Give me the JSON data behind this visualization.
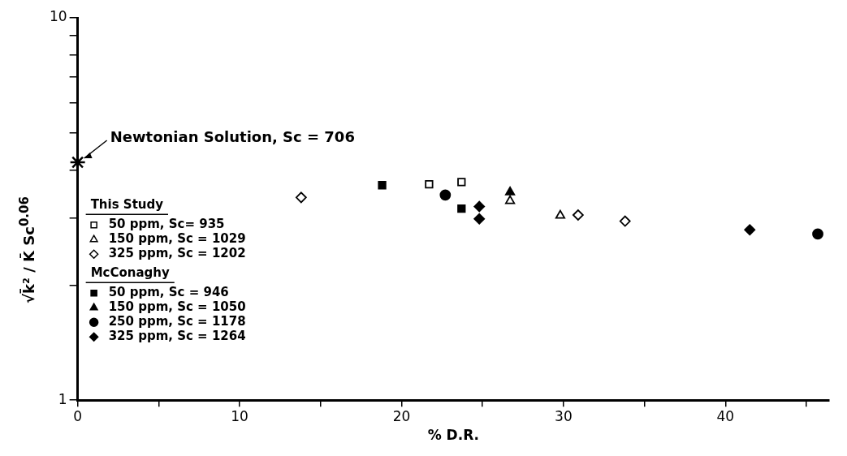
{
  "chart_data": {
    "type": "scatter",
    "xlabel": "% D.R.",
    "ylabel": "√k̄² / K̄  Sc$^{0.06}$",
    "log": "y",
    "grid": false,
    "legend": "left",
    "xlim": [
      0,
      46.4
    ],
    "ylim": [
      1,
      10
    ],
    "xticks": [
      {
        "value": 0,
        "label": "0"
      },
      {
        "value": 5,
        "label": null
      },
      {
        "value": 10,
        "label": "10"
      },
      {
        "value": 15,
        "label": null
      },
      {
        "value": 20,
        "label": "20"
      },
      {
        "value": 25,
        "label": null
      },
      {
        "value": 30,
        "label": "30"
      },
      {
        "value": 35,
        "label": null
      },
      {
        "value": 40,
        "label": "40"
      },
      {
        "value": 45,
        "label": null
      }
    ],
    "yticks": [
      1,
      {
        "value": 2,
        "label": null
      },
      {
        "value": 3,
        "label": null
      },
      {
        "value": 4,
        "label": null
      },
      {
        "value": 5,
        "label": null
      },
      {
        "value": 6,
        "label": null
      },
      {
        "value": 7,
        "label": null
      },
      {
        "value": 8,
        "label": null
      },
      {
        "value": 9,
        "label": null
      },
      10
    ],
    "annotations": [
      {
        "text": "Newtonian Solution, Sc = 706",
        "x": 0,
        "y": 4.19
      },
      "This Study",
      "McConaghy"
    ],
    "series": [
      {
        "color": "#000000",
        "marker": "cross",
        "x": [
          0
        ],
        "values": [
          4.19
        ]
      },
      {
        "name": "50 ppm, Sc= 935",
        "color": "#ffffff",
        "marker": "square",
        "x": [
          21.7,
          23.7
        ],
        "values": [
          3.67,
          3.72
        ]
      },
      {
        "name": "150 ppm, Sc = 1029",
        "color": "#ffffff",
        "marker": "triangle",
        "x": [
          26.7,
          29.8
        ],
        "values": [
          3.32,
          3.04
        ]
      },
      {
        "name": "325 ppm, Sc = 1202",
        "color": "#ffffff",
        "marker": "diamond",
        "x": [
          13.8,
          30.9,
          33.8
        ],
        "values": [
          3.39,
          3.05,
          2.94
        ]
      },
      {
        "name": "50 ppm, Sc = 946",
        "color": "#000000",
        "marker": "square",
        "x": [
          18.8,
          23.7
        ],
        "values": [
          3.65,
          3.17
        ]
      },
      {
        "name": "150 ppm, Sc = 1050",
        "color": "#000000",
        "marker": "triangle",
        "x": [
          26.7
        ],
        "values": [
          3.5
        ]
      },
      {
        "name": "250 ppm, Sc = 1178",
        "color": "#000000",
        "marker": "circle",
        "x": [
          22.7,
          45.7
        ],
        "values": [
          3.44,
          2.72
        ]
      },
      {
        "name": "325 ppm, Sc = 1264",
        "color": "#000000",
        "marker": "diamond",
        "x": [
          24.8,
          24.8,
          41.5
        ],
        "values": [
          3.21,
          2.98,
          2.79
        ]
      }
    ]
  }
}
